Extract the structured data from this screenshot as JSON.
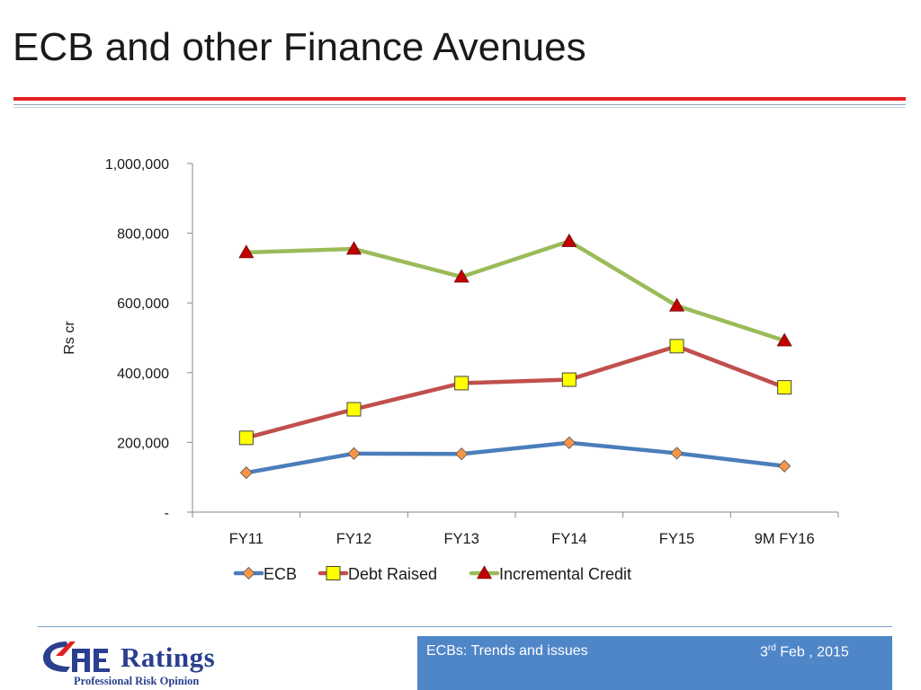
{
  "slide": {
    "title": "ECB and other Finance Avenues"
  },
  "chart_data": {
    "type": "line",
    "title": "",
    "ylabel": "Rs cr",
    "xlabel": "",
    "categories": [
      "FY11",
      "FY12",
      "FY13",
      "FY14",
      "FY15",
      "9M FY16"
    ],
    "ylim": [
      0,
      1000000
    ],
    "yticks": [
      0,
      200000,
      400000,
      600000,
      800000,
      1000000
    ],
    "ytick_labels": [
      "-",
      "200,000",
      "400,000",
      "600,000",
      "800,000",
      "1,000,000"
    ],
    "legend_position": "bottom",
    "series": [
      {
        "name": "ECB",
        "color": "#4a7ebb",
        "marker": "diamond",
        "marker_color": "#f79646",
        "values": [
          113000,
          168000,
          167000,
          199000,
          169000,
          132000
        ]
      },
      {
        "name": "Debt Raised",
        "color": "#c0504d",
        "marker": "square",
        "marker_color": "#ffff00",
        "values": [
          213000,
          295000,
          370000,
          380000,
          476000,
          358000
        ]
      },
      {
        "name": "Incremental Credit",
        "color": "#9bbb59",
        "marker": "triangle",
        "marker_color": "#c00000",
        "values": [
          745000,
          755000,
          675000,
          777000,
          592000,
          492000
        ]
      }
    ]
  },
  "logo": {
    "name": "Ratings",
    "tagline": "Professional Risk Opinion"
  },
  "footer": {
    "left_text": "ECBs: Trends and issues",
    "date_day": "3",
    "date_suffix": "rd",
    "date_rest": " Feb , 2015",
    "box_color": "#4f86c8"
  }
}
